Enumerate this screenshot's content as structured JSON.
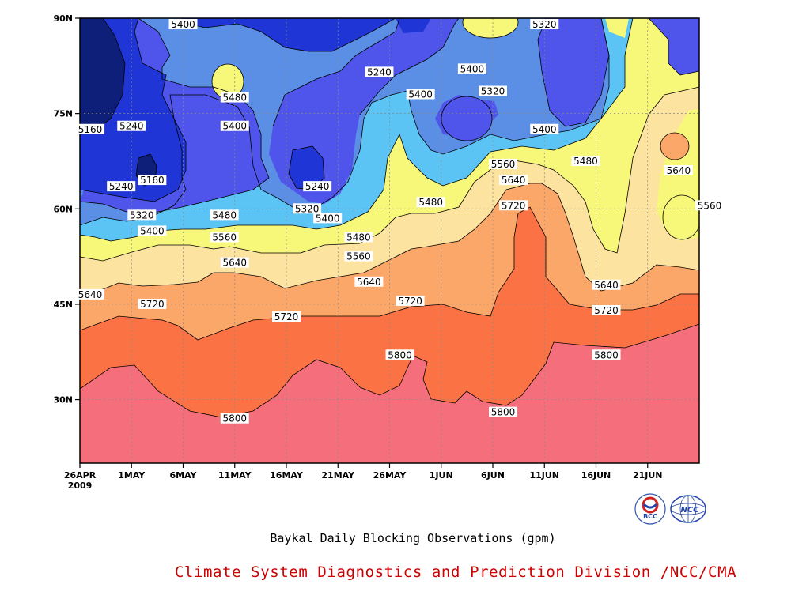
{
  "chart_data": {
    "type": "contour",
    "title": "Baykal Daily Blocking Observations (gpm)",
    "x_axis": {
      "ticks": [
        "26APR\n2009",
        "1MAY",
        "6MAY",
        "11MAY",
        "16MAY",
        "21MAY",
        "26MAY",
        "1JUN",
        "6JUN",
        "11JUN",
        "16JUN",
        "21JUN"
      ],
      "range": [
        "2009-04-26",
        "2009-06-25"
      ]
    },
    "y_axis": {
      "ticks": [
        "30N",
        "45N",
        "60N",
        "75N",
        "90N"
      ],
      "range": [
        20,
        90
      ]
    },
    "grid": true,
    "contour_levels": [
      5160,
      5240,
      5320,
      5400,
      5480,
      5560,
      5640,
      5720,
      5800
    ],
    "fill_colors": [
      "#0d1f78",
      "#1f35d6",
      "#4f55ea",
      "#5b8fe6",
      "#5bc4f5",
      "#f7f77a",
      "#fde3a0",
      "#fca76a",
      "#fb7345",
      "#f46e7c"
    ],
    "contour_labels": [
      {
        "text": "5400",
        "date": "2009-05-06",
        "lat": 89
      },
      {
        "text": "5240",
        "date": "2009-05-25",
        "lat": 81.5
      },
      {
        "text": "5320",
        "date": "2009-06-10",
        "lat": 89
      },
      {
        "text": "5400",
        "date": "2009-06-03",
        "lat": 82
      },
      {
        "text": "5320",
        "date": "2009-06-05",
        "lat": 78.5
      },
      {
        "text": "5480",
        "date": "2009-05-11",
        "lat": 77.5
      },
      {
        "text": "5400",
        "date": "2009-05-11",
        "lat": 73
      },
      {
        "text": "5400",
        "date": "2009-05-29",
        "lat": 78
      },
      {
        "text": "5400",
        "date": "2009-06-10",
        "lat": 72.5
      },
      {
        "text": "5160",
        "date": "2009-04-27",
        "lat": 72.5
      },
      {
        "text": "5240",
        "date": "2009-05-01",
        "lat": 73
      },
      {
        "text": "5160",
        "date": "2009-05-03",
        "lat": 64.5
      },
      {
        "text": "5240",
        "date": "2009-04-30",
        "lat": 63.5
      },
      {
        "text": "5240",
        "date": "2009-05-19",
        "lat": 63.5
      },
      {
        "text": "5480",
        "date": "2009-06-14",
        "lat": 67.5
      },
      {
        "text": "5560",
        "date": "2009-06-06",
        "lat": 67
      },
      {
        "text": "5640",
        "date": "2009-06-23",
        "lat": 66
      },
      {
        "text": "5640",
        "date": "2009-06-07",
        "lat": 64.5
      },
      {
        "text": "5480",
        "date": "2009-05-30",
        "lat": 61
      },
      {
        "text": "5720",
        "date": "2009-06-07",
        "lat": 60.5
      },
      {
        "text": "5560",
        "date": "2009-06-26",
        "lat": 60.5
      },
      {
        "text": "5320",
        "date": "2009-05-02",
        "lat": 59
      },
      {
        "text": "5480",
        "date": "2009-05-10",
        "lat": 59
      },
      {
        "text": "5320",
        "date": "2009-05-18",
        "lat": 60
      },
      {
        "text": "5400",
        "date": "2009-05-20",
        "lat": 58.5
      },
      {
        "text": "5400",
        "date": "2009-05-03",
        "lat": 56.5
      },
      {
        "text": "5560",
        "date": "2009-05-10",
        "lat": 55.5
      },
      {
        "text": "5480",
        "date": "2009-05-23",
        "lat": 55.5
      },
      {
        "text": "5560",
        "date": "2009-05-23",
        "lat": 52.5
      },
      {
        "text": "5640",
        "date": "2009-05-11",
        "lat": 51.5
      },
      {
        "text": "5640",
        "date": "2009-05-24",
        "lat": 48.5
      },
      {
        "text": "5640",
        "date": "2009-06-16",
        "lat": 48
      },
      {
        "text": "5640",
        "date": "2009-04-27",
        "lat": 46.5
      },
      {
        "text": "5720",
        "date": "2009-05-03",
        "lat": 45
      },
      {
        "text": "5720",
        "date": "2009-05-28",
        "lat": 45.5
      },
      {
        "text": "5720",
        "date": "2009-06-16",
        "lat": 44
      },
      {
        "text": "5720",
        "date": "2009-05-16",
        "lat": 43
      },
      {
        "text": "5800",
        "date": "2009-05-27",
        "lat": 37
      },
      {
        "text": "5800",
        "date": "2009-06-16",
        "lat": 37
      },
      {
        "text": "5800",
        "date": "2009-05-11",
        "lat": 27
      },
      {
        "text": "5800",
        "date": "2009-06-06",
        "lat": 28
      }
    ]
  },
  "caption": "Baykal Daily Blocking Observations (gpm)",
  "credit": "Climate System Diagnostics and Prediction Division /NCC/CMA",
  "logos": {
    "bcc": "BCC",
    "ncc": "NCC"
  }
}
